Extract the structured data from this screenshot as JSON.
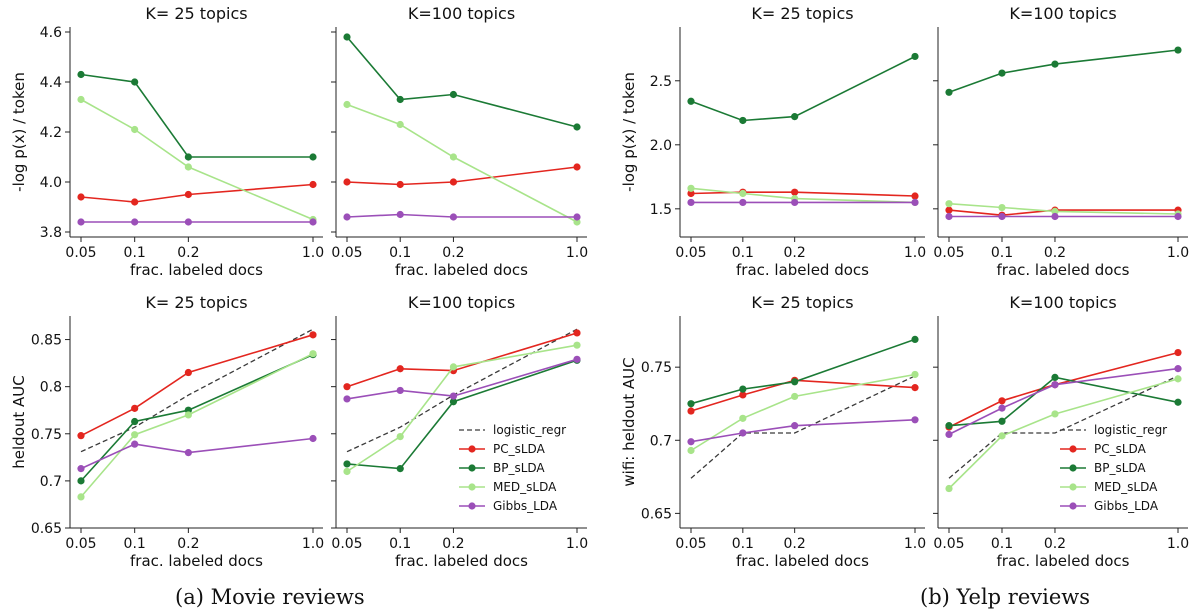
{
  "captions": {
    "a": "(a) Movie reviews",
    "b": "(b) Yelp reviews"
  },
  "colors": {
    "logistic_regr": "#3a3a3a",
    "PC_sLDA": "#e3261f",
    "BP_sLDA": "#1b7a35",
    "MED_sLDA": "#a8e48a",
    "Gibbs_LDA": "#9b4fb8"
  },
  "chart_data": [
    {
      "id": "movie_logp_k25",
      "type": "line",
      "title": "K= 25 topics",
      "xlabel": "frac. labeled docs",
      "ylabel": "-log p(x) / token",
      "x": [
        0.05,
        0.1,
        0.2,
        1.0
      ],
      "xticks": [
        "0.05",
        "0.1",
        "0.2",
        "1.0"
      ],
      "ylim": [
        3.78,
        4.62
      ],
      "yticks": [
        3.8,
        4.0,
        4.2,
        4.4,
        4.6
      ],
      "yticklabels": [
        "3.8",
        "4.0",
        "4.2",
        "4.4",
        "4.6"
      ],
      "series": [
        {
          "name": "PC_sLDA",
          "values": [
            3.94,
            3.92,
            3.95,
            3.99
          ]
        },
        {
          "name": "BP_sLDA",
          "values": [
            4.43,
            4.4,
            4.1,
            4.1
          ]
        },
        {
          "name": "MED_sLDA",
          "values": [
            4.33,
            4.21,
            4.06,
            3.85
          ]
        },
        {
          "name": "Gibbs_LDA",
          "values": [
            3.84,
            3.84,
            3.84,
            3.84
          ]
        }
      ]
    },
    {
      "id": "movie_logp_k100",
      "type": "line",
      "title": "K=100 topics",
      "xlabel": "frac. labeled docs",
      "ylabel": "",
      "x": [
        0.05,
        0.1,
        0.2,
        1.0
      ],
      "xticks": [
        "0.05",
        "0.1",
        "0.2",
        "1.0"
      ],
      "ylim": [
        3.78,
        4.62
      ],
      "yticks": [
        3.8,
        4.0,
        4.2,
        4.4,
        4.6
      ],
      "yticklabels": [],
      "series": [
        {
          "name": "PC_sLDA",
          "values": [
            4.0,
            3.99,
            4.0,
            4.06
          ]
        },
        {
          "name": "BP_sLDA",
          "values": [
            4.58,
            4.33,
            4.35,
            4.22
          ]
        },
        {
          "name": "MED_sLDA",
          "values": [
            4.31,
            4.23,
            4.1,
            3.84
          ]
        },
        {
          "name": "Gibbs_LDA",
          "values": [
            3.86,
            3.87,
            3.86,
            3.86
          ]
        }
      ]
    },
    {
      "id": "yelp_logp_k25",
      "type": "line",
      "title": "K= 25 topics",
      "xlabel": "frac. labeled docs",
      "ylabel": "-log p(x) / token",
      "x": [
        0.05,
        0.1,
        0.2,
        1.0
      ],
      "xticks": [
        "0.05",
        "0.1",
        "0.2",
        "1.0"
      ],
      "ylim": [
        1.28,
        2.92
      ],
      "yticks": [
        1.5,
        2.0,
        2.5
      ],
      "yticklabels": [
        "1.5",
        "2.0",
        "2.5"
      ],
      "series": [
        {
          "name": "PC_sLDA",
          "values": [
            1.62,
            1.63,
            1.63,
            1.6
          ]
        },
        {
          "name": "BP_sLDA",
          "values": [
            2.34,
            2.19,
            2.22,
            2.69
          ]
        },
        {
          "name": "MED_sLDA",
          "values": [
            1.66,
            1.62,
            1.58,
            1.55
          ]
        },
        {
          "name": "Gibbs_LDA",
          "values": [
            1.55,
            1.55,
            1.55,
            1.55
          ]
        }
      ]
    },
    {
      "id": "yelp_logp_k100",
      "type": "line",
      "title": "K=100 topics",
      "xlabel": "frac. labeled docs",
      "ylabel": "",
      "x": [
        0.05,
        0.1,
        0.2,
        1.0
      ],
      "xticks": [
        "0.05",
        "0.1",
        "0.2",
        "1.0"
      ],
      "ylim": [
        1.28,
        2.92
      ],
      "yticks": [
        1.5,
        2.0,
        2.5
      ],
      "yticklabels": [],
      "series": [
        {
          "name": "PC_sLDA",
          "values": [
            1.49,
            1.45,
            1.49,
            1.49
          ]
        },
        {
          "name": "BP_sLDA",
          "values": [
            2.41,
            2.56,
            2.63,
            2.74
          ]
        },
        {
          "name": "MED_sLDA",
          "values": [
            1.54,
            1.51,
            1.48,
            1.46
          ]
        },
        {
          "name": "Gibbs_LDA",
          "values": [
            1.44,
            1.44,
            1.44,
            1.44
          ]
        }
      ]
    },
    {
      "id": "movie_auc_k25",
      "type": "line",
      "title": "K= 25 topics",
      "xlabel": "frac. labeled docs",
      "ylabel": "heldout AUC",
      "x": [
        0.05,
        0.1,
        0.2,
        1.0
      ],
      "xticks": [
        "0.05",
        "0.1",
        "0.2",
        "1.0"
      ],
      "ylim": [
        0.65,
        0.875
      ],
      "yticks": [
        0.65,
        0.7,
        0.75,
        0.8,
        0.85
      ],
      "yticklabels": [
        "0.65",
        "0.7",
        "0.75",
        "0.8",
        "0.85"
      ],
      "series": [
        {
          "name": "logistic_regr",
          "values": [
            0.731,
            0.757,
            0.791,
            0.861
          ],
          "dashed": true,
          "markers": false
        },
        {
          "name": "PC_sLDA",
          "values": [
            0.748,
            0.777,
            0.815,
            0.855
          ]
        },
        {
          "name": "BP_sLDA",
          "values": [
            0.7,
            0.763,
            0.775,
            0.834
          ]
        },
        {
          "name": "MED_sLDA",
          "values": [
            0.683,
            0.749,
            0.77,
            0.835
          ]
        },
        {
          "name": "Gibbs_LDA",
          "values": [
            0.713,
            0.739,
            0.73,
            0.745
          ]
        }
      ]
    },
    {
      "id": "movie_auc_k100",
      "type": "line",
      "title": "K=100 topics",
      "xlabel": "frac. labeled docs",
      "ylabel": "",
      "x": [
        0.05,
        0.1,
        0.2,
        1.0
      ],
      "xticks": [
        "0.05",
        "0.1",
        "0.2",
        "1.0"
      ],
      "ylim": [
        0.65,
        0.875
      ],
      "yticks": [
        0.65,
        0.7,
        0.75,
        0.8,
        0.85
      ],
      "yticklabels": [],
      "legend": "lower-right",
      "series": [
        {
          "name": "logistic_regr",
          "values": [
            0.731,
            0.757,
            0.791,
            0.861
          ],
          "dashed": true,
          "markers": false
        },
        {
          "name": "PC_sLDA",
          "values": [
            0.8,
            0.819,
            0.817,
            0.857
          ]
        },
        {
          "name": "BP_sLDA",
          "values": [
            0.718,
            0.713,
            0.784,
            0.828
          ]
        },
        {
          "name": "MED_sLDA",
          "values": [
            0.71,
            0.747,
            0.821,
            0.844
          ]
        },
        {
          "name": "Gibbs_LDA",
          "values": [
            0.787,
            0.796,
            0.79,
            0.829
          ]
        }
      ]
    },
    {
      "id": "yelp_auc_k25",
      "type": "line",
      "title": "K= 25 topics",
      "xlabel": "frac. labeled docs",
      "ylabel": "wifi: heldout AUC",
      "x": [
        0.05,
        0.1,
        0.2,
        1.0
      ],
      "xticks": [
        "0.05",
        "0.1",
        "0.2",
        "1.0"
      ],
      "ylim": [
        0.64,
        0.785
      ],
      "yticks": [
        0.65,
        0.7,
        0.75
      ],
      "yticklabels": [
        "0.65",
        "0.7",
        "0.75"
      ],
      "series": [
        {
          "name": "logistic_regr",
          "values": [
            0.674,
            0.705,
            0.705,
            0.744
          ],
          "dashed": true,
          "markers": false
        },
        {
          "name": "PC_sLDA",
          "values": [
            0.72,
            0.731,
            0.741,
            0.736
          ]
        },
        {
          "name": "BP_sLDA",
          "values": [
            0.725,
            0.735,
            0.74,
            0.769
          ]
        },
        {
          "name": "MED_sLDA",
          "values": [
            0.693,
            0.715,
            0.73,
            0.745
          ]
        },
        {
          "name": "Gibbs_LDA",
          "values": [
            0.699,
            0.705,
            0.71,
            0.714
          ]
        }
      ]
    },
    {
      "id": "yelp_auc_k100",
      "type": "line",
      "title": "K=100 topics",
      "xlabel": "frac. labeled docs",
      "ylabel": "",
      "x": [
        0.05,
        0.1,
        0.2,
        1.0
      ],
      "xticks": [
        "0.05",
        "0.1",
        "0.2",
        "1.0"
      ],
      "ylim": [
        0.64,
        0.785
      ],
      "yticks": [
        0.65,
        0.7,
        0.75
      ],
      "yticklabels": [],
      "legend": "lower-right",
      "series": [
        {
          "name": "logistic_regr",
          "values": [
            0.674,
            0.705,
            0.705,
            0.744
          ],
          "dashed": true,
          "markers": false
        },
        {
          "name": "PC_sLDA",
          "values": [
            0.709,
            0.727,
            0.738,
            0.76
          ]
        },
        {
          "name": "BP_sLDA",
          "values": [
            0.71,
            0.713,
            0.743,
            0.726
          ]
        },
        {
          "name": "MED_sLDA",
          "values": [
            0.667,
            0.703,
            0.718,
            0.742
          ]
        },
        {
          "name": "Gibbs_LDA",
          "values": [
            0.704,
            0.722,
            0.738,
            0.749
          ]
        }
      ]
    }
  ]
}
